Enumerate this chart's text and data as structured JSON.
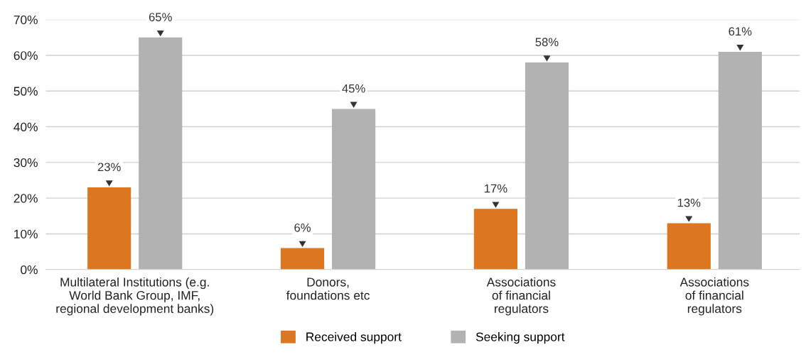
{
  "chart_data": {
    "type": "bar",
    "categories": [
      "Multilateral Institutions (e.g.\nWorld Bank Group, IMF,\nregional development banks)",
      "Donors,\nfoundations etc",
      "Associations\nof financial\nregulators",
      "Associations\nof financial\nregulators"
    ],
    "series": [
      {
        "name": "Received support",
        "color": "#dd7620",
        "values": [
          23,
          6,
          17,
          13
        ],
        "value_labels": [
          "23%",
          "6%",
          "17%",
          "13%"
        ]
      },
      {
        "name": "Seeking support",
        "color": "#b2b2b2",
        "values": [
          65,
          45,
          58,
          61
        ],
        "value_labels": [
          "65%",
          "45%",
          "58%",
          "61%"
        ]
      }
    ],
    "ylim": [
      0,
      70
    ],
    "yticks": [
      {
        "value": 0,
        "label": "0%"
      },
      {
        "value": 10,
        "label": "10%"
      },
      {
        "value": 20,
        "label": "20%"
      },
      {
        "value": 30,
        "label": "30%"
      },
      {
        "value": 40,
        "label": "40%"
      },
      {
        "value": 50,
        "label": "50%"
      },
      {
        "value": 60,
        "label": "60%"
      },
      {
        "value": 70,
        "label": "70%"
      }
    ],
    "grid": "y",
    "legend": "bottom"
  }
}
